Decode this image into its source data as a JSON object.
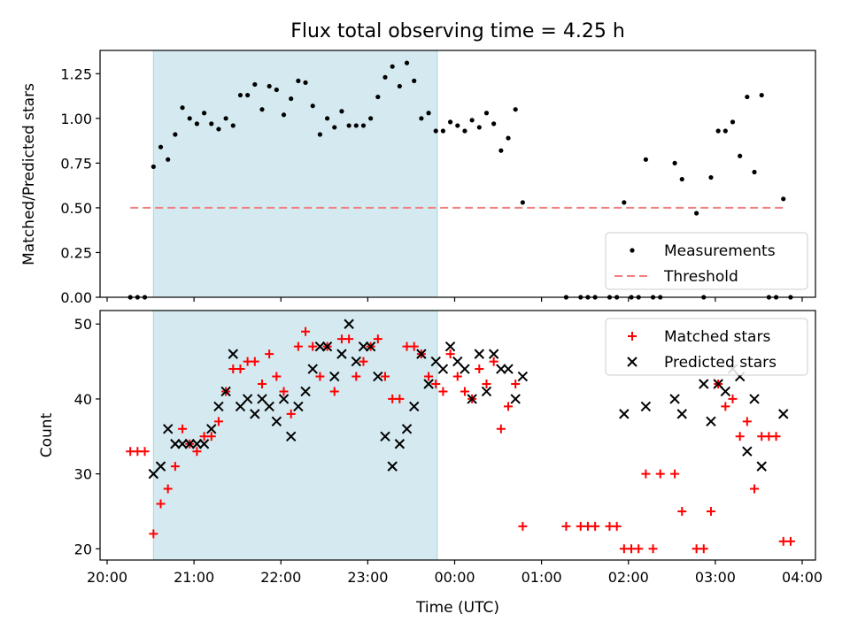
{
  "title": "Flux total observing time = 4.25 h",
  "chart_data": [
    {
      "type": "scatter",
      "ylabel": "Matched/Predicted stars",
      "xlabel": "",
      "xlim": [
        "20:00",
        "04:00"
      ],
      "ylim": [
        0,
        1.38
      ],
      "yticks": [
        "0.00",
        "0.25",
        "0.50",
        "0.75",
        "1.00",
        "1.25"
      ],
      "shaded_interval": [
        "20:32",
        "23:48"
      ],
      "legend_position": "lower right",
      "threshold": {
        "name": "Threshold",
        "value": 0.5,
        "x_range": [
          "20:16",
          "03:47"
        ],
        "color": "#f08080",
        "style": "dashed"
      },
      "series": [
        {
          "name": "Measurements",
          "color": "#000000",
          "marker": "dot",
          "points": [
            [
              "20:16",
              0
            ],
            [
              "20:21",
              0
            ],
            [
              "20:26",
              0
            ],
            [
              "20:32",
              0.73
            ],
            [
              "20:37",
              0.84
            ],
            [
              "20:42",
              0.77
            ],
            [
              "20:47",
              0.91
            ],
            [
              "20:52",
              1.06
            ],
            [
              "20:57",
              1.0
            ],
            [
              "21:02",
              0.97
            ],
            [
              "21:07",
              1.03
            ],
            [
              "21:12",
              0.97
            ],
            [
              "21:17",
              0.94
            ],
            [
              "21:22",
              1.0
            ],
            [
              "21:27",
              0.96
            ],
            [
              "21:32",
              1.13
            ],
            [
              "21:37",
              1.13
            ],
            [
              "21:42",
              1.19
            ],
            [
              "21:47",
              1.05
            ],
            [
              "21:52",
              1.18
            ],
            [
              "21:57",
              1.16
            ],
            [
              "22:02",
              1.02
            ],
            [
              "22:07",
              1.11
            ],
            [
              "22:12",
              1.21
            ],
            [
              "22:17",
              1.2
            ],
            [
              "22:22",
              1.07
            ],
            [
              "22:27",
              0.91
            ],
            [
              "22:32",
              1.0
            ],
            [
              "22:37",
              0.95
            ],
            [
              "22:42",
              1.04
            ],
            [
              "22:47",
              0.96
            ],
            [
              "22:52",
              0.96
            ],
            [
              "22:57",
              0.96
            ],
            [
              "23:02",
              1.0
            ],
            [
              "23:07",
              1.12
            ],
            [
              "23:12",
              1.23
            ],
            [
              "23:17",
              1.29
            ],
            [
              "23:22",
              1.18
            ],
            [
              "23:27",
              1.31
            ],
            [
              "23:32",
              1.21
            ],
            [
              "23:37",
              1.0
            ],
            [
              "23:42",
              1.03
            ],
            [
              "23:47",
              0.93
            ],
            [
              "23:52",
              0.93
            ],
            [
              "23:57",
              0.98
            ],
            [
              "00:02",
              0.96
            ],
            [
              "00:07",
              0.93
            ],
            [
              "00:12",
              0.99
            ],
            [
              "00:17",
              0.95
            ],
            [
              "00:22",
              1.03
            ],
            [
              "00:27",
              0.97
            ],
            [
              "00:32",
              0.82
            ],
            [
              "00:37",
              0.89
            ],
            [
              "00:42",
              1.05
            ],
            [
              "00:47",
              0.53
            ],
            [
              "01:17",
              0
            ],
            [
              "01:27",
              0
            ],
            [
              "01:32",
              0
            ],
            [
              "01:37",
              0
            ],
            [
              "01:47",
              0
            ],
            [
              "01:52",
              0
            ],
            [
              "01:57",
              0.53
            ],
            [
              "02:02",
              0
            ],
            [
              "02:07",
              0
            ],
            [
              "02:12",
              0.77
            ],
            [
              "02:17",
              0
            ],
            [
              "02:22",
              0
            ],
            [
              "02:32",
              0.75
            ],
            [
              "02:37",
              0.66
            ],
            [
              "02:47",
              0.47
            ],
            [
              "02:52",
              0
            ],
            [
              "02:57",
              0.67
            ],
            [
              "03:02",
              0.93
            ],
            [
              "03:07",
              0.93
            ],
            [
              "03:12",
              0.98
            ],
            [
              "03:17",
              0.79
            ],
            [
              "03:22",
              1.12
            ],
            [
              "03:27",
              0.7
            ],
            [
              "03:32",
              1.13
            ],
            [
              "03:37",
              0
            ],
            [
              "03:42",
              0
            ],
            [
              "03:47",
              0.55
            ],
            [
              "03:52",
              0
            ]
          ]
        }
      ]
    },
    {
      "type": "scatter",
      "ylabel": "Count",
      "xlabel": "Time (UTC)",
      "xlim": [
        "20:00",
        "04:00"
      ],
      "ylim": [
        18.5,
        51.8
      ],
      "yticks": [
        "20",
        "30",
        "40",
        "50"
      ],
      "xticks": [
        "20:00",
        "21:00",
        "22:00",
        "23:00",
        "00:00",
        "01:00",
        "02:00",
        "03:00",
        "04:00"
      ],
      "shaded_interval": [
        "20:32",
        "23:48"
      ],
      "legend_position": "upper right",
      "series": [
        {
          "name": "Matched stars",
          "color": "#ff0000",
          "marker": "plus",
          "points": [
            [
              "20:16",
              33
            ],
            [
              "20:21",
              33
            ],
            [
              "20:26",
              33
            ],
            [
              "20:32",
              22
            ],
            [
              "20:37",
              26
            ],
            [
              "20:42",
              28
            ],
            [
              "20:47",
              31
            ],
            [
              "20:52",
              36
            ],
            [
              "20:57",
              34
            ],
            [
              "21:02",
              33
            ],
            [
              "21:07",
              35
            ],
            [
              "21:12",
              35
            ],
            [
              "21:17",
              37
            ],
            [
              "21:22",
              41
            ],
            [
              "21:27",
              44
            ],
            [
              "21:32",
              44
            ],
            [
              "21:37",
              45
            ],
            [
              "21:42",
              45
            ],
            [
              "21:47",
              42
            ],
            [
              "21:52",
              46
            ],
            [
              "21:57",
              43
            ],
            [
              "22:02",
              41
            ],
            [
              "22:07",
              38
            ],
            [
              "22:12",
              47
            ],
            [
              "22:17",
              49
            ],
            [
              "22:22",
              47
            ],
            [
              "22:27",
              43
            ],
            [
              "22:32",
              47
            ],
            [
              "22:37",
              41
            ],
            [
              "22:42",
              48
            ],
            [
              "22:47",
              48
            ],
            [
              "22:52",
              43
            ],
            [
              "22:57",
              45
            ],
            [
              "23:02",
              47
            ],
            [
              "23:07",
              48
            ],
            [
              "23:12",
              43
            ],
            [
              "23:17",
              40
            ],
            [
              "23:22",
              40
            ],
            [
              "23:27",
              47
            ],
            [
              "23:32",
              47
            ],
            [
              "23:37",
              46
            ],
            [
              "23:42",
              43
            ],
            [
              "23:47",
              42
            ],
            [
              "23:52",
              41
            ],
            [
              "23:57",
              46
            ],
            [
              "00:02",
              43
            ],
            [
              "00:07",
              41
            ],
            [
              "00:12",
              40
            ],
            [
              "00:17",
              44
            ],
            [
              "00:22",
              42
            ],
            [
              "00:27",
              45
            ],
            [
              "00:32",
              36
            ],
            [
              "00:37",
              39
            ],
            [
              "00:42",
              42
            ],
            [
              "00:47",
              23
            ],
            [
              "01:17",
              23
            ],
            [
              "01:27",
              23
            ],
            [
              "01:32",
              23
            ],
            [
              "01:37",
              23
            ],
            [
              "01:47",
              23
            ],
            [
              "01:52",
              23
            ],
            [
              "01:57",
              20
            ],
            [
              "02:02",
              20
            ],
            [
              "02:07",
              20
            ],
            [
              "02:12",
              30
            ],
            [
              "02:17",
              20
            ],
            [
              "02:22",
              30
            ],
            [
              "02:32",
              30
            ],
            [
              "02:37",
              25
            ],
            [
              "02:47",
              20
            ],
            [
              "02:52",
              20
            ],
            [
              "02:57",
              25
            ],
            [
              "03:02",
              42
            ],
            [
              "03:07",
              39
            ],
            [
              "03:12",
              40
            ],
            [
              "03:17",
              35
            ],
            [
              "03:22",
              37
            ],
            [
              "03:27",
              28
            ],
            [
              "03:32",
              35
            ],
            [
              "03:37",
              35
            ],
            [
              "03:42",
              35
            ],
            [
              "03:47",
              21
            ],
            [
              "03:52",
              21
            ]
          ]
        },
        {
          "name": "Predicted stars",
          "color": "#000000",
          "marker": "x",
          "points": [
            [
              "20:32",
              30
            ],
            [
              "20:37",
              31
            ],
            [
              "20:42",
              36
            ],
            [
              "20:47",
              34
            ],
            [
              "20:52",
              34
            ],
            [
              "20:57",
              34
            ],
            [
              "21:02",
              34
            ],
            [
              "21:07",
              34
            ],
            [
              "21:12",
              36
            ],
            [
              "21:17",
              39
            ],
            [
              "21:22",
              41
            ],
            [
              "21:27",
              46
            ],
            [
              "21:32",
              39
            ],
            [
              "21:37",
              40
            ],
            [
              "21:42",
              38
            ],
            [
              "21:47",
              40
            ],
            [
              "21:52",
              39
            ],
            [
              "21:57",
              37
            ],
            [
              "22:02",
              40
            ],
            [
              "22:07",
              35
            ],
            [
              "22:12",
              39
            ],
            [
              "22:17",
              41
            ],
            [
              "22:22",
              44
            ],
            [
              "22:27",
              47
            ],
            [
              "22:32",
              47
            ],
            [
              "22:37",
              43
            ],
            [
              "22:42",
              46
            ],
            [
              "22:47",
              50
            ],
            [
              "22:52",
              45
            ],
            [
              "22:57",
              47
            ],
            [
              "23:02",
              47
            ],
            [
              "23:07",
              43
            ],
            [
              "23:12",
              35
            ],
            [
              "23:17",
              31
            ],
            [
              "23:22",
              34
            ],
            [
              "23:27",
              36
            ],
            [
              "23:32",
              39
            ],
            [
              "23:37",
              46
            ],
            [
              "23:42",
              42
            ],
            [
              "23:47",
              45
            ],
            [
              "23:52",
              44
            ],
            [
              "23:57",
              47
            ],
            [
              "00:02",
              45
            ],
            [
              "00:07",
              44
            ],
            [
              "00:12",
              40
            ],
            [
              "00:17",
              46
            ],
            [
              "00:22",
              41
            ],
            [
              "00:27",
              46
            ],
            [
              "00:32",
              44
            ],
            [
              "00:37",
              44
            ],
            [
              "00:42",
              40
            ],
            [
              "00:47",
              43
            ],
            [
              "01:57",
              38
            ],
            [
              "02:12",
              39
            ],
            [
              "02:32",
              40
            ],
            [
              "02:37",
              38
            ],
            [
              "02:52",
              42
            ],
            [
              "02:57",
              37
            ],
            [
              "03:02",
              42
            ],
            [
              "03:07",
              41
            ],
            [
              "03:12",
              44
            ],
            [
              "03:17",
              43
            ],
            [
              "03:22",
              33
            ],
            [
              "03:27",
              40
            ],
            [
              "03:32",
              31
            ],
            [
              "03:47",
              38
            ]
          ]
        }
      ]
    }
  ],
  "colors": {
    "shade": "#d4eaf0",
    "shade_edge": "#a8d4e0",
    "threshold": "#f08080"
  }
}
